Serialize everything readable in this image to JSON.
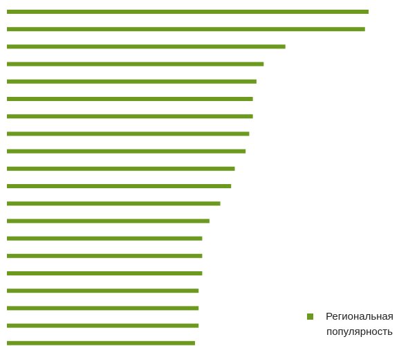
{
  "chart_data": {
    "type": "bar",
    "orientation": "horizontal",
    "legend": "bottom-right",
    "series": [
      {
        "name": "Региональная популярность",
        "color": "#6b9a1e",
        "values": [
          100,
          99,
          77,
          71,
          69,
          68,
          68,
          67,
          66,
          63,
          62,
          59,
          56,
          54,
          54,
          54,
          53,
          53,
          53,
          52
        ]
      }
    ]
  }
}
